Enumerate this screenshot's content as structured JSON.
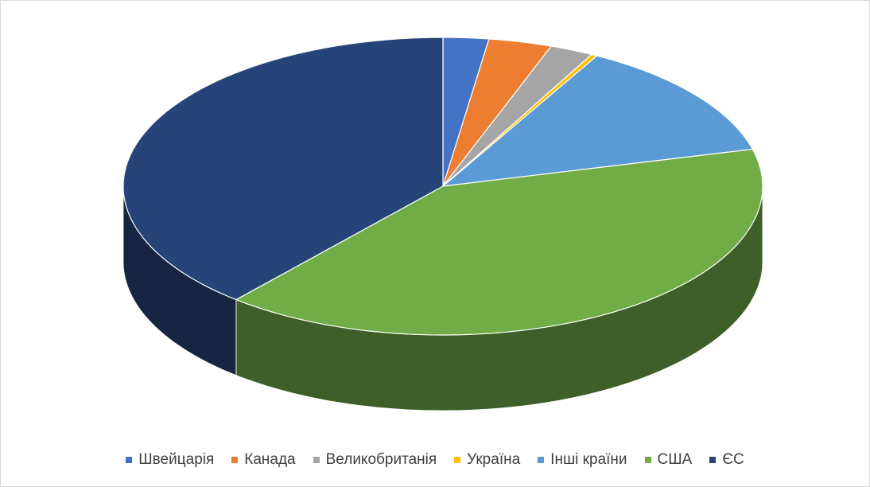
{
  "chart_data": {
    "type": "pie",
    "categories": [
      "Швейцарія",
      "Канада",
      "Великобританія",
      "Україна",
      "Інші країни",
      "США",
      "ЄС"
    ],
    "values": [
      2.3,
      3.2,
      2.2,
      0.3,
      13,
      40.2,
      38.8
    ],
    "colors": [
      "#4472c4",
      "#ed7d31",
      "#a5a5a5",
      "#ffc000",
      "#5b9bd5",
      "#70ad47",
      "#264478"
    ],
    "legend": "bottom"
  }
}
